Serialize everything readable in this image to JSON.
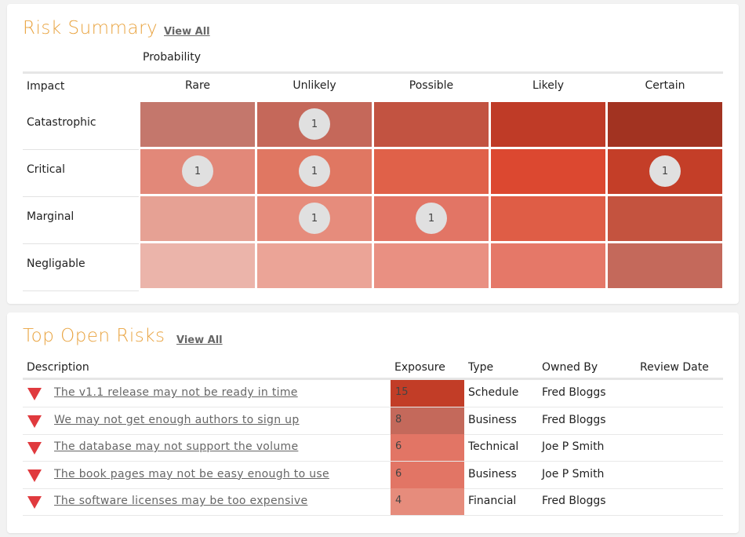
{
  "summary": {
    "title": "Risk Summary",
    "view_all": "View All",
    "probability_label": "Probability",
    "impact_label": "Impact",
    "probabilities": [
      "Rare",
      "Unlikely",
      "Possible",
      "Likely",
      "Certain"
    ],
    "impacts": [
      "Catastrophic",
      "Critical",
      "Marginal",
      "Negligable"
    ],
    "cell_colors": [
      [
        "#c4776c",
        "#c5685a",
        "#c25341",
        "#bf3b27",
        "#a23321"
      ],
      [
        "#e28879",
        "#e07762",
        "#e06149",
        "#dc4830",
        "#c43e28"
      ],
      [
        "#e6a194",
        "#e68c7c",
        "#e27565",
        "#df5d46",
        "#c4533f"
      ],
      [
        "#ebb4aa",
        "#eba497",
        "#e99082",
        "#e57868",
        "#c4695b"
      ]
    ],
    "counts": [
      [
        "",
        "1",
        "",
        "",
        ""
      ],
      [
        "1",
        "1",
        "",
        "",
        "1"
      ],
      [
        "",
        "1",
        "1",
        "",
        ""
      ],
      [
        "",
        "",
        "",
        "",
        ""
      ]
    ]
  },
  "risks": {
    "title": "Top Open Risks",
    "view_all": "View All",
    "columns": {
      "description": "Description",
      "exposure": "Exposure",
      "type": "Type",
      "owner": "Owned By",
      "review": "Review Date"
    },
    "rows": [
      {
        "description": "The v1.1 release may not be ready in time",
        "exposure": "15",
        "exposure_color": "#c23d27",
        "type": "Schedule",
        "owner": "Fred Bloggs",
        "review": ""
      },
      {
        "description": "We may not get enough authors to sign up",
        "exposure": "8",
        "exposure_color": "#c4695b",
        "type": "Business",
        "owner": "Fred Bloggs",
        "review": ""
      },
      {
        "description": "The database may not support the volume",
        "exposure": "6",
        "exposure_color": "#e27565",
        "type": "Technical",
        "owner": "Joe P Smith",
        "review": ""
      },
      {
        "description": "The book pages may not be easy enough to use",
        "exposure": "6",
        "exposure_color": "#e27565",
        "type": "Business",
        "owner": "Joe P Smith",
        "review": ""
      },
      {
        "description": "The software licenses may be too expensive",
        "exposure": "4",
        "exposure_color": "#e68c7c",
        "type": "Financial",
        "owner": "Fred Bloggs",
        "review": ""
      }
    ]
  }
}
